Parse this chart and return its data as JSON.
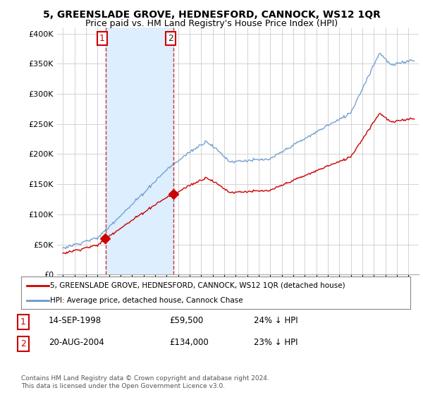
{
  "title": "5, GREENSLADE GROVE, HEDNESFORD, CANNOCK, WS12 1QR",
  "subtitle": "Price paid vs. HM Land Registry's House Price Index (HPI)",
  "legend_red": "5, GREENSLADE GROVE, HEDNESFORD, CANNOCK, WS12 1QR (detached house)",
  "legend_blue": "HPI: Average price, detached house, Cannock Chase",
  "sale1_label": "1",
  "sale1_date": "14-SEP-1998",
  "sale1_price": "£59,500",
  "sale1_hpi": "24% ↓ HPI",
  "sale1_year": 1998.71,
  "sale1_value": 59500,
  "sale2_label": "2",
  "sale2_date": "20-AUG-2004",
  "sale2_price": "£134,000",
  "sale2_hpi": "23% ↓ HPI",
  "sale2_year": 2004.63,
  "sale2_value": 134000,
  "footnote": "Contains HM Land Registry data © Crown copyright and database right 2024.\nThis data is licensed under the Open Government Licence v3.0.",
  "ylim": [
    0,
    410000
  ],
  "yticks": [
    0,
    50000,
    100000,
    150000,
    200000,
    250000,
    300000,
    350000,
    400000
  ],
  "bg_color": "#ffffff",
  "grid_color": "#cccccc",
  "red_color": "#cc0000",
  "blue_color": "#6699cc",
  "shade_color": "#ddeeff",
  "vline_color": "#cc0000",
  "sale_marker_color": "#cc0000",
  "title_fontsize": 10,
  "subtitle_fontsize": 9
}
